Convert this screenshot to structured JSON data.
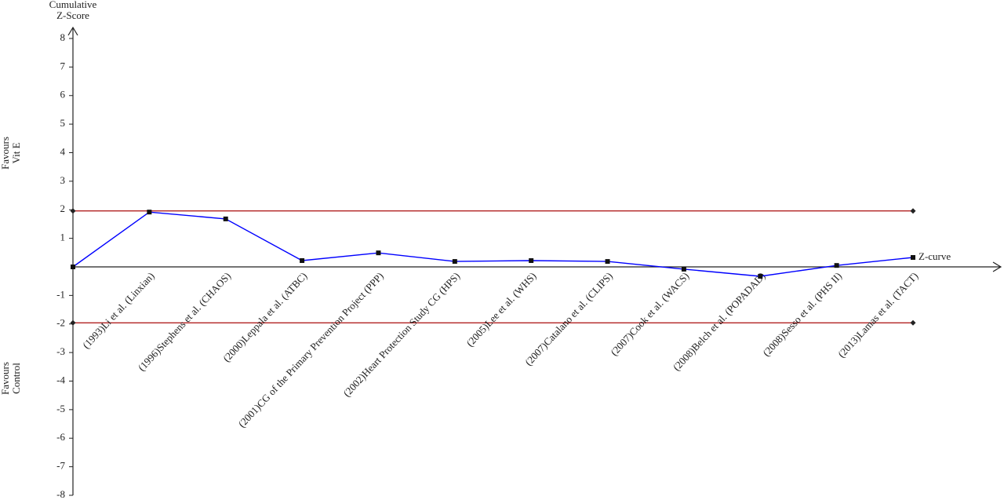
{
  "chart_data": {
    "type": "line",
    "y_label": [
      "Cumulative",
      "Z-Score"
    ],
    "upper_region_label": [
      "Favours",
      "Vit E"
    ],
    "lower_region_label": [
      "Favours",
      "Control"
    ],
    "categories": [
      null,
      "(1993)Li et al. (Linxian)",
      "(1996)Stephens et al. (CHAOS)",
      "(2000)Leppala et al. (ATBC)",
      "(2001)CG of the Primary Prevention Project (PPP)",
      "(2002)Heart Protection Study CG (HPS)",
      "(2005)Lee et al. (WHS)",
      "(2007)Catalano et al. (CLIPS)",
      "(2007)Cook et al. (WACS)",
      "(2008)Belch et al. (POPADAD)",
      "(2008)Sesso et al. (PHS II)",
      "(2013)Lamas et al. (TACT)"
    ],
    "category_label_color": "#ff0000",
    "series": [
      {
        "name": "Z-curve",
        "color": "#0000ff",
        "values": [
          0,
          1.92,
          1.68,
          0.22,
          0.49,
          0.19,
          0.22,
          0.19,
          -0.08,
          -0.33,
          0.05,
          0.33
        ]
      }
    ],
    "reference_lines": [
      {
        "value": 1.96,
        "color": "#b22222"
      },
      {
        "value": -1.96,
        "color": "#b22222"
      }
    ],
    "ylim": [
      -8,
      8
    ],
    "yticks": [
      -8,
      -7,
      -6,
      -5,
      -4,
      -3,
      -2,
      -1,
      1,
      2,
      3,
      4,
      5,
      6,
      7,
      8
    ]
  }
}
